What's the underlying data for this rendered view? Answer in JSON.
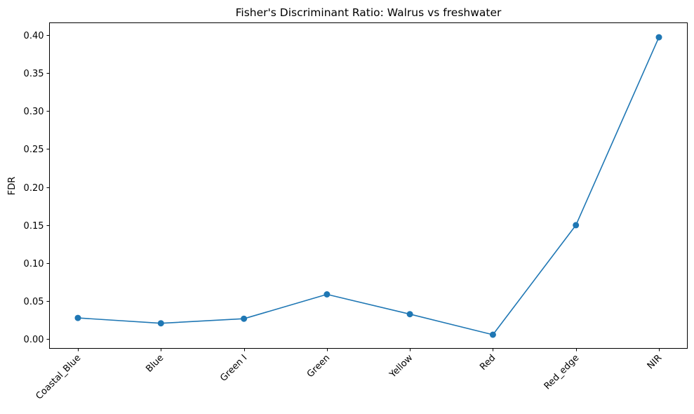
{
  "chart_data": {
    "type": "line",
    "title": "Fisher's Discriminant Ratio: Walrus vs freshwater",
    "xlabel": "",
    "ylabel": "FDR",
    "categories": [
      "Coastal_Blue",
      "Blue",
      "Green I",
      "Green",
      "Yellow",
      "Red",
      "Red_edge",
      "NIR"
    ],
    "series": [
      {
        "values": [
          0.028,
          0.021,
          0.027,
          0.059,
          0.033,
          0.006,
          0.15,
          0.397
        ],
        "color": "#1f77b4",
        "marker": "circle"
      }
    ],
    "ylim": [
      -0.012,
      0.416
    ],
    "yticks": [
      0.0,
      0.05,
      0.1,
      0.15,
      0.2,
      0.25,
      0.3,
      0.35,
      0.4
    ],
    "ytick_labels": [
      "0.00",
      "0.05",
      "0.10",
      "0.15",
      "0.20",
      "0.25",
      "0.30",
      "0.35",
      "0.40"
    ],
    "xtick_rotation": 45,
    "grid": false,
    "legend": "none"
  }
}
